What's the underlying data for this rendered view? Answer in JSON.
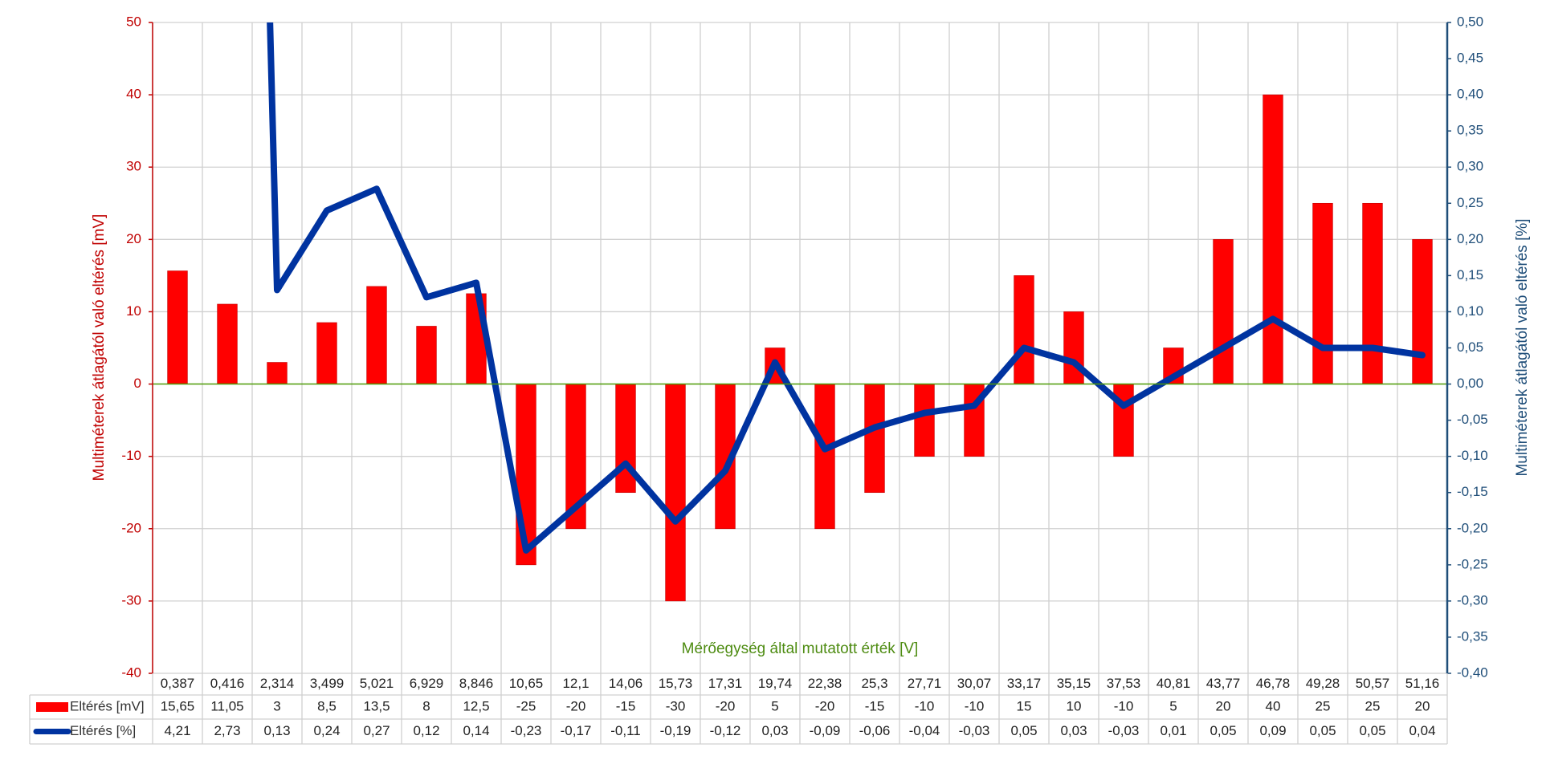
{
  "chart_data": {
    "type": "bar-line",
    "x_label": "Mérőegység által mutatott érték [V]",
    "y_label": "Multiméterek átlagától való eltérés [mV]",
    "y2_label": "Multiméterek átlagától való eltérés [%]",
    "categories": [
      "0,387",
      "0,416",
      "2,314",
      "3,499",
      "5,021",
      "6,929",
      "8,846",
      "10,65",
      "12,1",
      "14,06",
      "15,73",
      "17,31",
      "19,74",
      "22,38",
      "25,3",
      "27,71",
      "30,07",
      "33,17",
      "35,15",
      "37,53",
      "40,81",
      "43,77",
      "46,78",
      "49,28",
      "50,57",
      "51,16"
    ],
    "series": [
      {
        "name": "Eltérés [mV]",
        "type": "bar",
        "color": "#ff0000",
        "values": [
          15.65,
          11.05,
          3,
          8.5,
          13.5,
          8,
          12.5,
          -25,
          -20,
          -15,
          -30,
          -20,
          5,
          -20,
          -15,
          -10,
          -10,
          15,
          10,
          -10,
          5,
          20,
          40,
          25,
          25,
          20
        ],
        "value_labels": [
          "15,65",
          "11,05",
          "3",
          "8,5",
          "13,5",
          "8",
          "12,5",
          "-25",
          "-20",
          "-15",
          "-30",
          "-20",
          "5",
          "-20",
          "-15",
          "-10",
          "-10",
          "15",
          "10",
          "-10",
          "5",
          "20",
          "40",
          "25",
          "25",
          "20"
        ]
      },
      {
        "name": "Eltérés [%]",
        "type": "line",
        "axis": "y2",
        "color": "#0033a0",
        "values": [
          4.21,
          2.73,
          0.13,
          0.24,
          0.27,
          0.12,
          0.14,
          -0.23,
          -0.17,
          -0.11,
          -0.19,
          -0.12,
          0.03,
          -0.09,
          -0.06,
          -0.04,
          -0.03,
          0.05,
          0.03,
          -0.03,
          0.01,
          0.05,
          0.09,
          0.05,
          0.05,
          0.04
        ],
        "value_labels": [
          "4,21",
          "2,73",
          "0,13",
          "0,24",
          "0,27",
          "0,12",
          "0,14",
          "-0,23",
          "-0,17",
          "-0,11",
          "-0,19",
          "-0,12",
          "0,03",
          "-0,09",
          "-0,06",
          "-0,04",
          "-0,03",
          "0,05",
          "0,03",
          "-0,03",
          "0,01",
          "0,05",
          "0,09",
          "0,05",
          "0,05",
          "0,04"
        ]
      }
    ],
    "ylim": [
      -40,
      50
    ],
    "yticks": [
      -40,
      -30,
      -20,
      -10,
      0,
      10,
      20,
      30,
      40,
      50
    ],
    "y2lim": [
      -0.4,
      0.5
    ],
    "y2ticks": [
      {
        "value": -0.4,
        "label": "-0,40"
      },
      {
        "value": -0.35,
        "label": "-0,35"
      },
      {
        "value": -0.3,
        "label": "-0,30"
      },
      {
        "value": -0.25,
        "label": "-0,25"
      },
      {
        "value": -0.2,
        "label": "-0,20"
      },
      {
        "value": -0.15,
        "label": "-0,15"
      },
      {
        "value": -0.1,
        "label": "-0,10"
      },
      {
        "value": -0.05,
        "label": "-0,05"
      },
      {
        "value": 0,
        "label": "0,00"
      },
      {
        "value": 0.05,
        "label": "0,05"
      },
      {
        "value": 0.1,
        "label": "0,10"
      },
      {
        "value": 0.15,
        "label": "0,15"
      },
      {
        "value": 0.2,
        "label": "0,20"
      },
      {
        "value": 0.25,
        "label": "0,25"
      },
      {
        "value": 0.3,
        "label": "0,30"
      },
      {
        "value": 0.35,
        "label": "0,35"
      },
      {
        "value": 0.4,
        "label": "0,40"
      },
      {
        "value": 0.45,
        "label": "0,45"
      },
      {
        "value": 0.5,
        "label": "0,50"
      }
    ],
    "grid": true,
    "data_table": true
  }
}
